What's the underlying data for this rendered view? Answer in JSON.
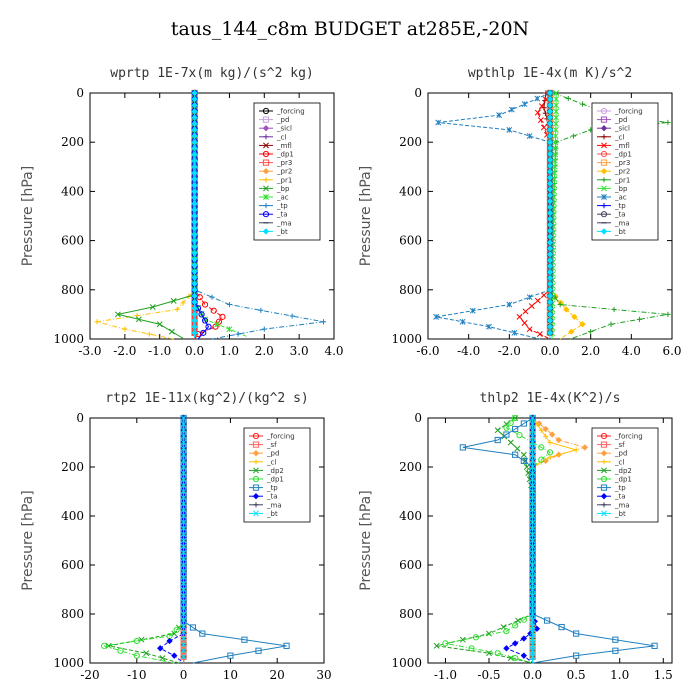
{
  "title": "taus_144_c8m  BUDGET at285E,-20N",
  "chart_data": [
    {
      "type": "line",
      "title": "wprtp  1E-7x(m kg)/(s^2 kg)",
      "ylabel": "Pressure [hPa]",
      "xlim": [
        -3.0,
        4.0
      ],
      "ylim": [
        1000,
        0
      ],
      "xticks": [
        "-3.0",
        "-2.0",
        "-1.0",
        "0.0",
        "1.0",
        "2.0",
        "3.0",
        "4.0"
      ],
      "yticks": [
        "0",
        "200",
        "400",
        "600",
        "800",
        "1000"
      ],
      "legend": "top-right",
      "series": [
        {
          "name": "_forcing",
          "color": "#000000",
          "x": [
            0,
            0,
            0,
            0,
            0,
            0,
            0
          ],
          "y": [
            0,
            200,
            400,
            600,
            800,
            900,
            1000
          ]
        },
        {
          "name": "_pd",
          "color": "#c9a0dc",
          "x": [
            0,
            0,
            0,
            0,
            0,
            0
          ],
          "y": [
            0,
            200,
            400,
            600,
            800,
            1000
          ]
        },
        {
          "name": "_sicl",
          "color": "#a050c0",
          "x": [
            0,
            0,
            0,
            0,
            0,
            0
          ],
          "y": [
            0,
            200,
            400,
            600,
            800,
            1000
          ]
        },
        {
          "name": "_cl",
          "color": "#7030a0",
          "x": [
            0,
            0,
            0,
            0,
            0,
            0
          ],
          "y": [
            0,
            200,
            400,
            600,
            800,
            1000
          ]
        },
        {
          "name": "_mfl",
          "color": "#8b0000",
          "x": [
            0,
            0,
            0,
            0,
            0,
            0
          ],
          "y": [
            0,
            200,
            400,
            600,
            800,
            1000
          ]
        },
        {
          "name": "_dp1",
          "color": "#ff0000",
          "x": [
            0,
            0,
            0.3,
            0.8,
            0.6,
            0.1,
            0
          ],
          "y": [
            0,
            800,
            860,
            910,
            950,
            980,
            1000
          ]
        },
        {
          "name": "_pr3",
          "color": "#ff5050",
          "x": [
            0,
            0,
            0,
            0,
            0
          ],
          "y": [
            0,
            400,
            800,
            900,
            1000
          ]
        },
        {
          "name": "_pr2",
          "color": "#ffa040",
          "x": [
            0,
            0,
            0,
            0,
            0
          ],
          "y": [
            0,
            400,
            800,
            900,
            1000
          ]
        },
        {
          "name": "_pr1",
          "color": "#ffc000",
          "x": [
            0,
            0,
            -0.5,
            -2.8,
            -2.0,
            -0.6
          ],
          "y": [
            0,
            800,
            880,
            930,
            960,
            1000
          ]
        },
        {
          "name": "_bp",
          "color": "#20a020",
          "x": [
            0,
            0,
            -1.2,
            -2.2,
            -1.0,
            -0.3
          ],
          "y": [
            0,
            820,
            870,
            900,
            940,
            1000
          ]
        },
        {
          "name": "_ac",
          "color": "#30e030",
          "x": [
            0,
            0,
            0.3,
            1.0,
            1.5
          ],
          "y": [
            0,
            850,
            920,
            960,
            990
          ]
        },
        {
          "name": "_tp",
          "color": "#2080c0",
          "x": [
            0,
            0,
            1.0,
            3.7,
            2.0,
            0.5
          ],
          "y": [
            0,
            800,
            860,
            930,
            960,
            1000
          ]
        },
        {
          "name": "_ta",
          "color": "#0000ff",
          "x": [
            0,
            0,
            0.2,
            0.4,
            0.1
          ],
          "y": [
            0,
            850,
            900,
            950,
            1000
          ]
        },
        {
          "name": "_ma",
          "color": "#404060",
          "x": [
            0,
            0,
            0,
            0
          ],
          "y": [
            0,
            400,
            800,
            1000
          ]
        },
        {
          "name": "_bt",
          "color": "#00e0ff",
          "x": [
            0,
            0,
            0,
            0
          ],
          "y": [
            0,
            400,
            800,
            1000
          ]
        }
      ]
    },
    {
      "type": "line",
      "title": "wpthlp  1E-4x(m K)/s^2",
      "ylabel": "Pressure [hPa]",
      "xlim": [
        -6.0,
        6.0
      ],
      "ylim": [
        1000,
        0
      ],
      "xticks": [
        "-6.0",
        "-4.0",
        "-2.0",
        "0.0",
        "2.0",
        "4.0",
        "6.0"
      ],
      "yticks": [
        "0",
        "200",
        "400",
        "600",
        "800",
        "1000"
      ],
      "legend": "top-right",
      "series": [
        {
          "name": "_forcing",
          "color": "#c9a0dc",
          "x": [
            0,
            0,
            0,
            0,
            0
          ],
          "y": [
            0,
            200,
            500,
            800,
            1000
          ]
        },
        {
          "name": "_pd",
          "color": "#a050c0",
          "x": [
            0,
            0,
            0,
            0,
            0
          ],
          "y": [
            0,
            200,
            500,
            800,
            1000
          ]
        },
        {
          "name": "_sicl",
          "color": "#7030a0",
          "x": [
            0,
            0,
            0,
            0,
            0
          ],
          "y": [
            0,
            200,
            500,
            800,
            1000
          ]
        },
        {
          "name": "_cl",
          "color": "#8b0000",
          "x": [
            -0.2,
            -0.3,
            0,
            0,
            0
          ],
          "y": [
            0,
            60,
            150,
            500,
            1000
          ]
        },
        {
          "name": "_mfl",
          "color": "#ff0000",
          "x": [
            0,
            -0.6,
            -0.3,
            0,
            0,
            -1.5,
            -1.0,
            0
          ],
          "y": [
            0,
            80,
            140,
            200,
            800,
            910,
            960,
            1000
          ]
        },
        {
          "name": "_dp1",
          "color": "#ff5050",
          "x": [
            0,
            0,
            0,
            0,
            0
          ],
          "y": [
            0,
            200,
            500,
            800,
            1000
          ]
        },
        {
          "name": "_pr3",
          "color": "#ffa040",
          "x": [
            0,
            0,
            0,
            0,
            0
          ],
          "y": [
            0,
            200,
            500,
            800,
            1000
          ]
        },
        {
          "name": "_pr2",
          "color": "#ffc000",
          "x": [
            0,
            0,
            0,
            0.8,
            1.6,
            0.5
          ],
          "y": [
            0,
            200,
            800,
            880,
            940,
            1000
          ]
        },
        {
          "name": "_pr1",
          "color": "#20a020",
          "x": [
            0.2,
            3.0,
            5.8,
            2.0,
            0.3,
            0,
            0.5,
            5.8,
            3.0,
            1.0
          ],
          "y": [
            0,
            90,
            120,
            150,
            200,
            800,
            860,
            900,
            940,
            1000
          ]
        },
        {
          "name": "_bp",
          "color": "#30e030",
          "x": [
            0.3,
            0.3,
            0.2,
            0.1
          ],
          "y": [
            0,
            100,
            400,
            1000
          ]
        },
        {
          "name": "_ac",
          "color": "#2080c0",
          "x": [
            0,
            -2.5,
            -5.5,
            -2.0,
            0,
            0,
            -2.0,
            -5.6,
            -3.0,
            -0.5
          ],
          "y": [
            0,
            90,
            120,
            150,
            200,
            800,
            860,
            910,
            950,
            1000
          ]
        },
        {
          "name": "_tp",
          "color": "#0000ff",
          "x": [
            0,
            0,
            0,
            0
          ],
          "y": [
            0,
            200,
            800,
            1000
          ]
        },
        {
          "name": "_ta",
          "color": "#404060",
          "x": [
            0,
            0,
            0,
            0
          ],
          "y": [
            0,
            200,
            800,
            1000
          ]
        },
        {
          "name": "_ma",
          "color": "#404060",
          "x": [
            0,
            0,
            0,
            0
          ],
          "y": [
            0,
            200,
            800,
            1000
          ]
        },
        {
          "name": "_bt",
          "color": "#00e0ff",
          "x": [
            0,
            0,
            0,
            0
          ],
          "y": [
            0,
            200,
            800,
            1000
          ]
        }
      ]
    },
    {
      "type": "line",
      "title": "rtp2  1E-11x(kg^2)/(kg^2 s)",
      "ylabel": "Pressure [hPa]",
      "xlim": [
        -20,
        30
      ],
      "ylim": [
        1000,
        0
      ],
      "xticks": [
        "-20",
        "-10",
        "0",
        "10",
        "20",
        "30"
      ],
      "yticks": [
        "0",
        "200",
        "400",
        "600",
        "800",
        "1000"
      ],
      "legend": "top-right",
      "series": [
        {
          "name": "_forcing",
          "color": "#ff2020",
          "x": [
            0,
            0,
            0,
            0,
            0,
            0
          ],
          "y": [
            0,
            200,
            400,
            600,
            800,
            1000
          ]
        },
        {
          "name": "_sf",
          "color": "#ff6060",
          "x": [
            0,
            0,
            0,
            0
          ],
          "y": [
            0,
            400,
            800,
            1000
          ]
        },
        {
          "name": "_pd",
          "color": "#ffa040",
          "x": [
            0,
            0,
            0,
            0
          ],
          "y": [
            0,
            400,
            800,
            1000
          ]
        },
        {
          "name": "_cl",
          "color": "#ffc000",
          "x": [
            0,
            0,
            0,
            0
          ],
          "y": [
            0,
            400,
            800,
            1000
          ]
        },
        {
          "name": "_dp2",
          "color": "#20a020",
          "x": [
            0,
            0,
            -2,
            -16,
            -8,
            -1
          ],
          "y": [
            0,
            830,
            880,
            930,
            960,
            1000
          ]
        },
        {
          "name": "_dp1",
          "color": "#30e030",
          "x": [
            0,
            0,
            -3,
            -17,
            -10,
            -2
          ],
          "y": [
            0,
            840,
            890,
            930,
            970,
            1000
          ]
        },
        {
          "name": "_tp",
          "color": "#2080c0",
          "x": [
            0,
            0,
            4,
            22,
            10,
            2
          ],
          "y": [
            0,
            830,
            880,
            930,
            970,
            1000
          ]
        },
        {
          "name": "_ta",
          "color": "#0000ff",
          "x": [
            0,
            0,
            -3,
            -5,
            -2,
            0
          ],
          "y": [
            0,
            880,
            910,
            940,
            970,
            1000
          ]
        },
        {
          "name": "_ma",
          "color": "#404060",
          "x": [
            0,
            0,
            0
          ],
          "y": [
            0,
            500,
            1000
          ]
        },
        {
          "name": "_bt",
          "color": "#00e0ff",
          "x": [
            0,
            0,
            0
          ],
          "y": [
            0,
            500,
            1000
          ]
        }
      ]
    },
    {
      "type": "line",
      "title": "thlp2  1E-4x(K^2)/s",
      "ylabel": "Pressure [hPa]",
      "xlim": [
        -1.2,
        1.6
      ],
      "ylim": [
        1000,
        0
      ],
      "xticks": [
        "-1.0",
        "-0.5",
        "0.0",
        "0.5",
        "1.0",
        "1.5"
      ],
      "xtick_values": [
        -1.0,
        -0.5,
        0.0,
        0.5,
        1.0,
        1.5
      ],
      "yticks": [
        "0",
        "200",
        "400",
        "600",
        "800",
        "1000"
      ],
      "legend": "top-right",
      "series": [
        {
          "name": "_forcing",
          "color": "#ff2020",
          "x": [
            0,
            0,
            0,
            0,
            0
          ],
          "y": [
            0,
            200,
            500,
            800,
            1000
          ]
        },
        {
          "name": "_sf",
          "color": "#ff6060",
          "x": [
            0,
            0,
            0,
            0
          ],
          "y": [
            0,
            400,
            800,
            1000
          ]
        },
        {
          "name": "_pd",
          "color": "#ffa040",
          "x": [
            0,
            0.3,
            0.6,
            0.3,
            0,
            0
          ],
          "y": [
            0,
            90,
            120,
            150,
            200,
            1000
          ]
        },
        {
          "name": "_cl",
          "color": "#ffc000",
          "x": [
            0,
            0.2,
            0.5,
            0.2,
            0,
            0
          ],
          "y": [
            0,
            100,
            130,
            160,
            200,
            1000
          ]
        },
        {
          "name": "_dp2",
          "color": "#20a020",
          "x": [
            -0.2,
            -0.4,
            -0.1,
            0,
            0,
            -0.5,
            -1.1,
            -0.5,
            0
          ],
          "y": [
            0,
            50,
            150,
            300,
            800,
            880,
            930,
            960,
            1000
          ]
        },
        {
          "name": "_dp1",
          "color": "#30e030",
          "x": [
            -0.2,
            -0.3,
            0,
            0.2,
            0,
            0,
            -0.3,
            -1.0,
            -0.4,
            0
          ],
          "y": [
            0,
            40,
            100,
            140,
            200,
            800,
            870,
            920,
            960,
            1000
          ]
        },
        {
          "name": "_tp",
          "color": "#2080c0",
          "x": [
            0,
            -0.4,
            -0.8,
            -0.2,
            0,
            0,
            0.5,
            1.4,
            0.5,
            0
          ],
          "y": [
            0,
            90,
            120,
            150,
            200,
            800,
            880,
            930,
            970,
            1000
          ]
        },
        {
          "name": "_ta",
          "color": "#0000ff",
          "x": [
            0,
            0,
            0.05,
            -0.1,
            -0.3,
            -0.1,
            0
          ],
          "y": [
            0,
            800,
            860,
            900,
            940,
            970,
            1000
          ]
        },
        {
          "name": "_ma",
          "color": "#404060",
          "x": [
            0,
            0,
            0
          ],
          "y": [
            0,
            500,
            1000
          ]
        },
        {
          "name": "_bt",
          "color": "#00e0ff",
          "x": [
            0,
            0,
            0
          ],
          "y": [
            0,
            500,
            1000
          ]
        }
      ]
    }
  ]
}
